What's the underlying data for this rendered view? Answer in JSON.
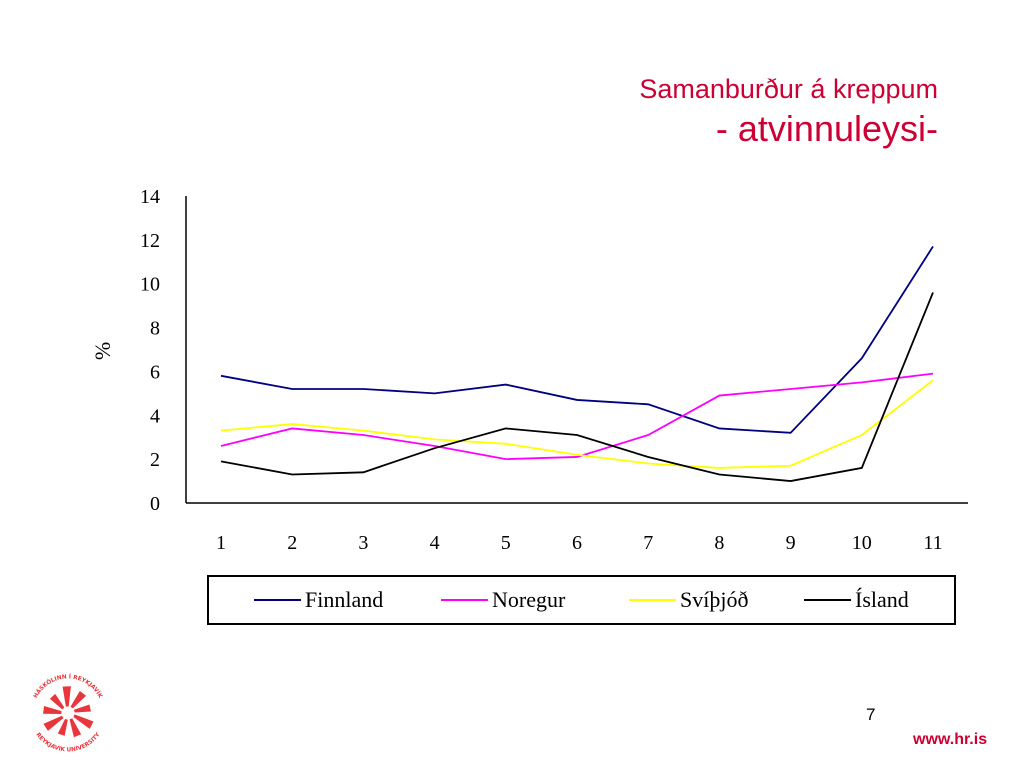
{
  "slide": {
    "title_line1": "Samanburður á kreppum",
    "title_line2": "- atvinnuleysi-",
    "page_number": "7",
    "url": "www.hr.is",
    "logo": {
      "text_top": "HÁSKÓLINN Í REYKJAVÍK",
      "text_bottom": "REYKJAVIK UNIVERSITY",
      "color": "#e8363c"
    }
  },
  "chart_data": {
    "type": "line",
    "title": "",
    "xlabel": "",
    "ylabel": "%",
    "x": [
      1,
      2,
      3,
      4,
      5,
      6,
      7,
      8,
      9,
      10,
      11
    ],
    "ylim": [
      0,
      14
    ],
    "yticks": [
      0,
      2,
      4,
      6,
      8,
      10,
      12,
      14
    ],
    "grid": false,
    "legend_position": "bottom",
    "series": [
      {
        "name": "Finnland",
        "color": "#000080",
        "values": [
          5.8,
          5.2,
          5.2,
          5.0,
          5.4,
          4.7,
          4.5,
          3.4,
          3.2,
          6.6,
          11.7
        ]
      },
      {
        "name": "Noregur",
        "color": "#ff00ff",
        "values": [
          2.6,
          3.4,
          3.1,
          2.6,
          2.0,
          2.1,
          3.1,
          4.9,
          5.2,
          5.5,
          5.9
        ]
      },
      {
        "name": "Svíþjóð",
        "color": "#ffff00",
        "values": [
          3.3,
          3.6,
          3.3,
          2.9,
          2.7,
          2.2,
          1.8,
          1.6,
          1.7,
          3.1,
          5.6
        ]
      },
      {
        "name": "Ísland",
        "color": "#000000",
        "values": [
          1.9,
          1.3,
          1.4,
          2.5,
          3.4,
          3.1,
          2.1,
          1.3,
          1.0,
          1.6,
          9.6
        ]
      }
    ]
  }
}
